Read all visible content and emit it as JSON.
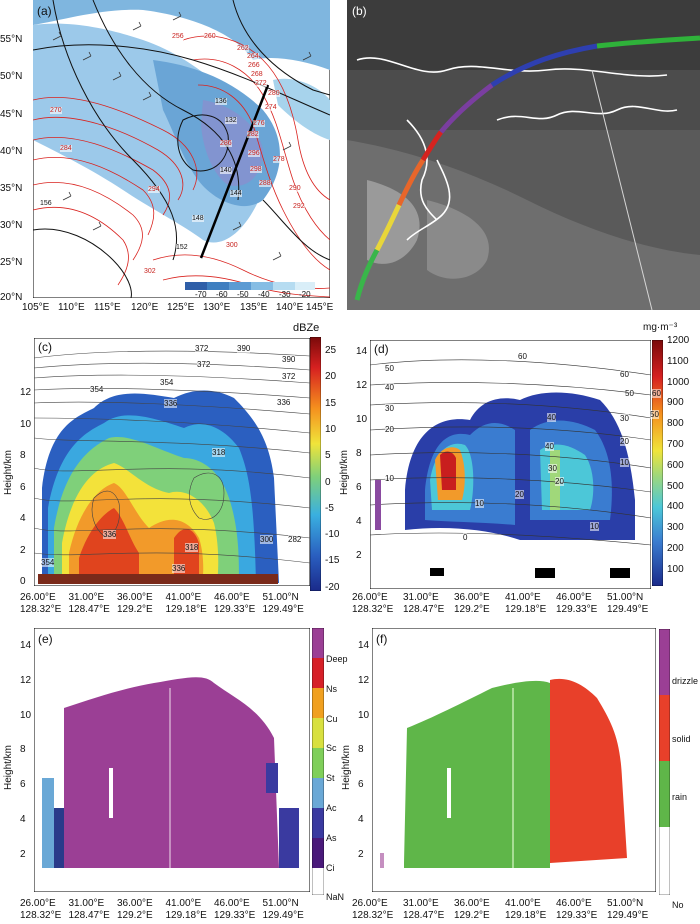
{
  "panels": {
    "a": {
      "label": "(a)",
      "lat_ticks": [
        "55°N",
        "50°N",
        "45°N",
        "40°N",
        "35°N",
        "30°N",
        "25°N",
        "20°N"
      ],
      "lon_ticks": [
        "105°E",
        "110°E",
        "115°E",
        "120°E",
        "125°E",
        "130°E",
        "135°E",
        "140°E",
        "145°E"
      ],
      "colorbar_ticks": [
        "-70",
        "-60",
        "-50",
        "-40",
        "-30",
        "-20"
      ],
      "contour_labels": [
        "256",
        "260",
        "262",
        "264",
        "266",
        "268",
        "270",
        "272",
        "274",
        "276",
        "278",
        "280",
        "282",
        "284",
        "286",
        "288",
        "290",
        "292",
        "294",
        "296",
        "298",
        "300",
        "302",
        "132",
        "136",
        "140",
        "144",
        "148",
        "152",
        "156"
      ]
    },
    "b": {
      "label": "(b)"
    },
    "c": {
      "label": "(c)",
      "colorbar_title": "dBZe",
      "colorbar_ticks": [
        "25",
        "20",
        "15",
        "10",
        "5",
        "0",
        "-5",
        "-10",
        "-15",
        "-20"
      ],
      "y_label": "Height/km",
      "y_ticks": [
        "12",
        "10",
        "8",
        "6",
        "4",
        "2",
        "0"
      ],
      "x_lon": [
        "26.00°E",
        "31.00°E",
        "36.00°E",
        "41.00°E",
        "46.00°E",
        "51.00°N"
      ],
      "x_lat": [
        "128.32°E",
        "128.47°E",
        "129.2°E",
        "129.18°E",
        "129.33°E",
        "129.49°E"
      ],
      "contour_labels": [
        "372",
        "390",
        "372",
        "390",
        "354",
        "354",
        "372",
        "336",
        "336",
        "318",
        "300",
        "336",
        "318",
        "282",
        "336",
        "354"
      ]
    },
    "d": {
      "label": "(d)",
      "colorbar_title": "mg·m⁻³",
      "colorbar_ticks": [
        "1200",
        "1100",
        "1000",
        "900",
        "800",
        "700",
        "600",
        "500",
        "400",
        "300",
        "200",
        "100"
      ],
      "y_label": "Height/km",
      "y_ticks": [
        "14",
        "12",
        "10",
        "8",
        "6",
        "4",
        "2"
      ],
      "x_lon": [
        "26.00°E",
        "31.00°E",
        "36.00°E",
        "41.00°E",
        "46.00°E",
        "51.00°N"
      ],
      "x_lat": [
        "128.32°E",
        "128.47°E",
        "129.2°E",
        "129.18°E",
        "129.33°E",
        "129.49°E"
      ],
      "contour_labels": [
        "60",
        "50",
        "40",
        "30",
        "20",
        "10",
        "0",
        "60",
        "50",
        "40",
        "30",
        "20",
        "10",
        "60",
        "50",
        "40",
        "30",
        "20",
        "10",
        "20",
        "10"
      ]
    },
    "e": {
      "label": "(e)",
      "y_label": "Height/km",
      "y_ticks": [
        "14",
        "12",
        "10",
        "8",
        "6",
        "4",
        "2"
      ],
      "x_lon": [
        "26.00°E",
        "31.00°E",
        "36.00°E",
        "41.00°E",
        "46.00°E",
        "51.00°N"
      ],
      "x_lat": [
        "128.32°E",
        "128.47°E",
        "129.2°E",
        "129.18°E",
        "129.33°E",
        "129.49°E"
      ],
      "categories": [
        "Deep",
        "Ns",
        "Cu",
        "Sc",
        "St",
        "Ac",
        "As",
        "Ci",
        "NaN"
      ]
    },
    "f": {
      "label": "(f)",
      "y_label": "Height/km",
      "y_ticks": [
        "14",
        "12",
        "10",
        "8",
        "6",
        "4",
        "2"
      ],
      "x_lon": [
        "26.00°E",
        "31.00°E",
        "36.00°E",
        "41.00°E",
        "46.00°E",
        "51.00°N"
      ],
      "x_lat": [
        "128.32°E",
        "128.47°E",
        "129.2°E",
        "129.18°E",
        "129.33°E",
        "129.49°E"
      ],
      "categories": [
        "drizzle",
        "solid",
        "rain",
        "No"
      ]
    }
  }
}
